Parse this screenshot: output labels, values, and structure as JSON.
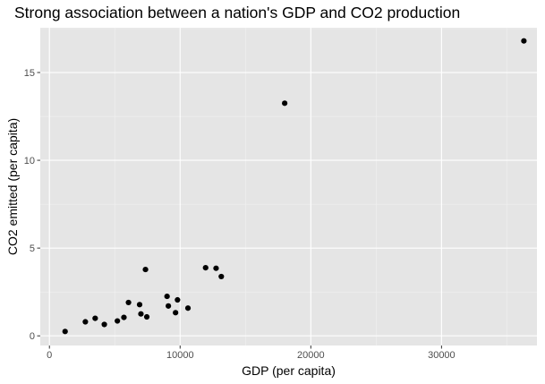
{
  "chart_data": {
    "type": "scatter",
    "title": "Strong association between a nation's GDP and CO2 production",
    "xlabel": "GDP (per capita)",
    "ylabel": "CO2 emitted (per capita)",
    "xlim": [
      -700,
      37300
    ],
    "ylim": [
      -0.55,
      17.55
    ],
    "x_ticks": [
      0,
      10000,
      20000,
      30000
    ],
    "x_tick_labels": [
      "0",
      "10000",
      "20000",
      "30000"
    ],
    "y_ticks": [
      0,
      5,
      10,
      15
    ],
    "y_tick_labels": [
      "0",
      "5",
      "10",
      "15"
    ],
    "grid": true,
    "legend": "none",
    "points": [
      {
        "x": 1200,
        "y": 0.25
      },
      {
        "x": 2750,
        "y": 0.8
      },
      {
        "x": 3500,
        "y": 1.0
      },
      {
        "x": 4200,
        "y": 0.65
      },
      {
        "x": 5200,
        "y": 0.85
      },
      {
        "x": 5700,
        "y": 1.05
      },
      {
        "x": 6050,
        "y": 1.9
      },
      {
        "x": 6900,
        "y": 1.78
      },
      {
        "x": 7000,
        "y": 1.25
      },
      {
        "x": 7350,
        "y": 3.78
      },
      {
        "x": 7450,
        "y": 1.08
      },
      {
        "x": 9000,
        "y": 2.25
      },
      {
        "x": 9100,
        "y": 1.7
      },
      {
        "x": 9650,
        "y": 1.32
      },
      {
        "x": 9800,
        "y": 2.05
      },
      {
        "x": 10600,
        "y": 1.58
      },
      {
        "x": 11950,
        "y": 3.88
      },
      {
        "x": 12750,
        "y": 3.85
      },
      {
        "x": 13150,
        "y": 3.38
      },
      {
        "x": 18000,
        "y": 13.25
      },
      {
        "x": 36300,
        "y": 16.8
      }
    ]
  },
  "colors": {
    "panel_background": "#e5e5e5",
    "major_grid": "#ffffff",
    "minor_grid": "#f2f2f2",
    "point": "#000000",
    "tick_label": "#4d4d4d",
    "tick_mark": "#333333"
  }
}
